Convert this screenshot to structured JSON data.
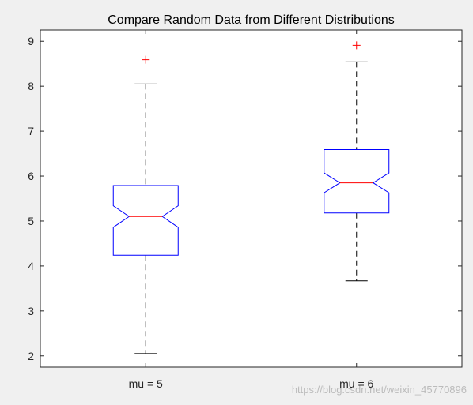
{
  "chart_data": {
    "type": "boxplot",
    "title": "Compare Random Data from Different Distributions",
    "xlabel": "",
    "ylabel": "",
    "ylim": [
      1.75,
      9.25
    ],
    "yticks": [
      2,
      3,
      4,
      5,
      6,
      7,
      8,
      9
    ],
    "notched": true,
    "grid": false,
    "categories": [
      "mu = 5",
      "mu = 6"
    ],
    "boxes": [
      {
        "label": "mu = 5",
        "whisker_low": 2.05,
        "q1": 4.24,
        "notch_low": 4.86,
        "median": 5.1,
        "notch_high": 5.34,
        "q3": 5.79,
        "whisker_high": 8.05,
        "outliers": [
          8.59
        ]
      },
      {
        "label": "mu = 6",
        "whisker_low": 3.67,
        "q1": 5.18,
        "notch_low": 5.63,
        "median": 5.85,
        "notch_high": 6.07,
        "q3": 6.59,
        "whisker_high": 8.54,
        "outliers": [
          8.91
        ]
      }
    ],
    "colors": {
      "box": "#0000ff",
      "median": "#ff0000",
      "whisker": "#000000",
      "outlier": "#ff0000"
    }
  },
  "watermark": "https://blog.csdn.net/weixin_45770896"
}
